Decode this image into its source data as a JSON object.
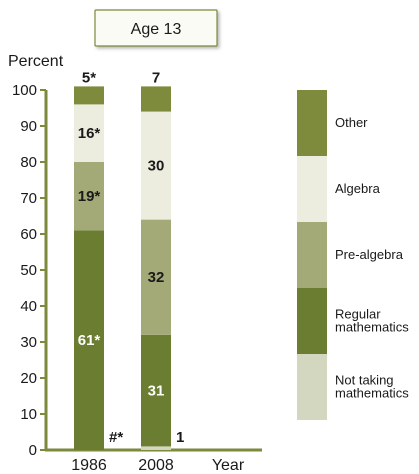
{
  "chart_data": {
    "type": "bar",
    "stacked": true,
    "title": "Age 13",
    "ylabel": "Percent",
    "xlabel": "Year",
    "ylim": [
      0,
      100
    ],
    "yticks": [
      0,
      10,
      20,
      30,
      40,
      50,
      60,
      70,
      80,
      90,
      100
    ],
    "grid": false,
    "legend_position": "right",
    "categories": [
      "1986",
      "2008"
    ],
    "series": [
      {
        "name": "Not taking mathematics",
        "color": "#d4d7bf",
        "values": [
          0,
          1
        ],
        "labels": [
          "#*",
          "1"
        ],
        "label_placement": "outside"
      },
      {
        "name": "Regular mathematics",
        "color": "#6a7d30",
        "values": [
          61,
          31
        ],
        "labels": [
          "61*",
          "31"
        ]
      },
      {
        "name": "Pre-algebra",
        "color": "#a3aa78",
        "values": [
          19,
          32
        ],
        "labels": [
          "19*",
          "32"
        ]
      },
      {
        "name": "Algebra",
        "color": "#ededdf",
        "values": [
          16,
          30
        ],
        "labels": [
          "16*",
          "30"
        ]
      },
      {
        "name": "Other",
        "color": "#7e8b3c",
        "values": [
          5,
          7
        ],
        "labels": [
          "5*",
          "7"
        ],
        "label_placement": "above"
      }
    ]
  },
  "colors": {
    "axis": "#7b8a3b",
    "title_border": "#7b8a3b",
    "title_background": "#fbfbf6",
    "label_dark": "#1a1a1a",
    "label_light": "#ffffff"
  }
}
